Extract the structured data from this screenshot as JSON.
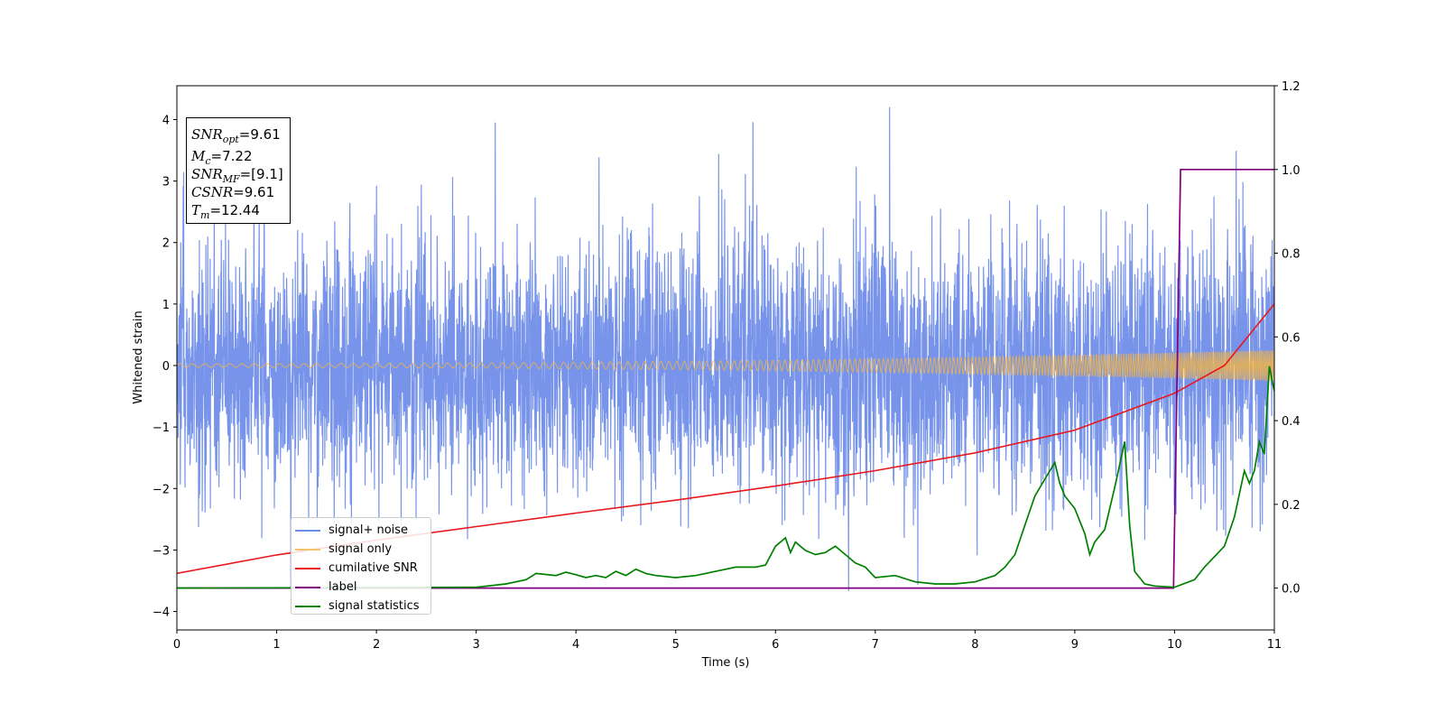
{
  "chart_data": {
    "type": "line",
    "xlabel": "Time (s)",
    "ylabel": "Whitened strain",
    "xlim": [
      0,
      11
    ],
    "ylim": [
      -4.3,
      4.55
    ],
    "ylim_right": [
      -0.1,
      1.2
    ],
    "x_ticks": [
      "0",
      "1",
      "2",
      "3",
      "4",
      "5",
      "6",
      "7",
      "8",
      "9",
      "10",
      "11"
    ],
    "y_ticks": [
      "−4",
      "−3",
      "−2",
      "−1",
      "0",
      "1",
      "2",
      "3",
      "4"
    ],
    "y_right_ticks": [
      "0.0",
      "0.2",
      "0.4",
      "0.6",
      "0.8",
      "1.0",
      "1.2"
    ],
    "annotation": {
      "snr_opt": "=9.61",
      "mc": "=7.22",
      "snr_mf": "=[9.1]",
      "csnr": "=9.61",
      "tm": "=12.44"
    },
    "legend_position": "lower-left",
    "series": [
      {
        "name": "signal+ noise",
        "color": "#6b8be8",
        "axis": "left",
        "description": "noisy whitened strain, roughly N(0,1), range ~[-3.9, 4.2]"
      },
      {
        "name": "signal only",
        "color": "#f5b440",
        "axis": "left",
        "chirp": {
          "amplitude_start": 0.03,
          "amplitude_end": 0.25,
          "freq_start_hz": 8,
          "freq_end_hz": 60
        }
      },
      {
        "name": "cumilative SNR",
        "color": "#e8171b",
        "axis": "left",
        "x": [
          0,
          1,
          2,
          3,
          4,
          5,
          6,
          7,
          8,
          9,
          10,
          10.5,
          11
        ],
        "y": [
          -3.38,
          -3.08,
          -2.84,
          -2.62,
          -2.4,
          -2.19,
          -1.96,
          -1.71,
          -1.42,
          -1.05,
          -0.45,
          -0.0,
          1.0
        ]
      },
      {
        "name": "label",
        "color": "#800080",
        "axis": "right",
        "x": [
          0,
          9.99,
          10.06,
          11
        ],
        "y": [
          0,
          0,
          1,
          1
        ]
      },
      {
        "name": "signal statistics",
        "color": "#008000",
        "axis": "right",
        "x": [
          0,
          3.0,
          3.3,
          3.5,
          3.6,
          3.8,
          3.9,
          4.0,
          4.1,
          4.2,
          4.3,
          4.4,
          4.5,
          4.6,
          4.7,
          4.8,
          5.0,
          5.2,
          5.4,
          5.6,
          5.8,
          5.9,
          6.0,
          6.1,
          6.15,
          6.2,
          6.3,
          6.4,
          6.5,
          6.6,
          6.7,
          6.8,
          6.9,
          7.0,
          7.2,
          7.4,
          7.6,
          7.8,
          8.0,
          8.2,
          8.3,
          8.4,
          8.5,
          8.6,
          8.7,
          8.8,
          8.85,
          8.9,
          9.0,
          9.1,
          9.15,
          9.2,
          9.3,
          9.4,
          9.5,
          9.55,
          9.6,
          9.7,
          9.8,
          10.0,
          10.2,
          10.3,
          10.5,
          10.6,
          10.7,
          10.75,
          10.8,
          10.85,
          10.9,
          10.95,
          11.0
        ],
        "y": [
          0.0,
          0.002,
          0.01,
          0.02,
          0.035,
          0.03,
          0.038,
          0.032,
          0.025,
          0.03,
          0.025,
          0.04,
          0.03,
          0.045,
          0.035,
          0.03,
          0.025,
          0.03,
          0.04,
          0.05,
          0.05,
          0.055,
          0.1,
          0.12,
          0.085,
          0.11,
          0.09,
          0.08,
          0.085,
          0.1,
          0.08,
          0.06,
          0.05,
          0.025,
          0.03,
          0.015,
          0.01,
          0.01,
          0.015,
          0.03,
          0.05,
          0.08,
          0.15,
          0.22,
          0.26,
          0.3,
          0.25,
          0.22,
          0.19,
          0.13,
          0.08,
          0.11,
          0.14,
          0.24,
          0.35,
          0.15,
          0.04,
          0.01,
          0.005,
          0.002,
          0.02,
          0.05,
          0.1,
          0.17,
          0.28,
          0.25,
          0.28,
          0.35,
          0.32,
          0.53,
          0.47
        ]
      }
    ]
  }
}
